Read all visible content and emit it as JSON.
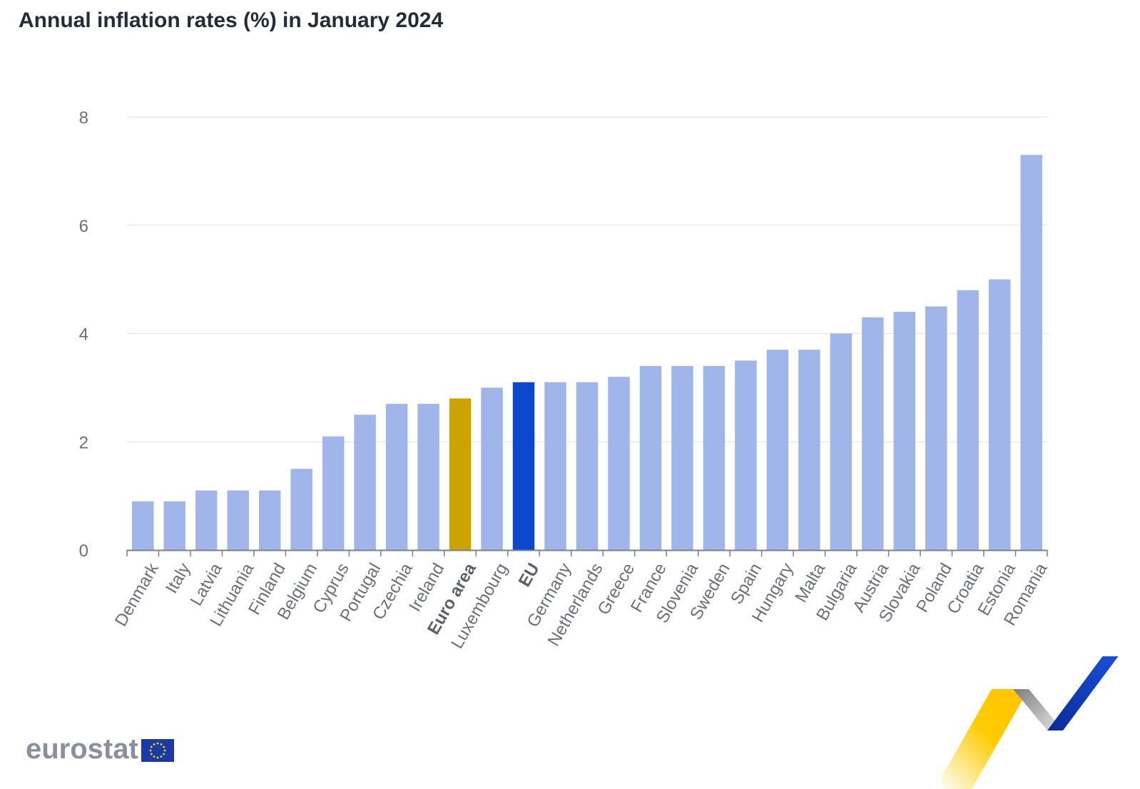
{
  "title": "Annual inflation rates (%) in January 2024",
  "logo": {
    "wordmark": "eurostat",
    "flag_icon": "eu-flag-icon"
  },
  "colors": {
    "default_bar": "#a0b5e9",
    "euro_area_bar": "#cca300",
    "eu_bar": "#0c48cf",
    "grid": "#dfe1e8",
    "axis": "#7a7f8c",
    "tick_label": "#6b6f7a",
    "text": "#262b38"
  },
  "chart_data": {
    "type": "bar",
    "title": "Annual inflation rates (%) in January 2024",
    "xlabel": "",
    "ylabel": "",
    "ylim": [
      0,
      8
    ],
    "yticks": [
      0,
      2,
      4,
      6,
      8
    ],
    "grid": true,
    "legend": "none",
    "categories": [
      "Denmark",
      "Italy",
      "Latvia",
      "Lithuania",
      "Finland",
      "Belgium",
      "Cyprus",
      "Portugal",
      "Czechia",
      "Ireland",
      "Euro area",
      "Luxembourg",
      "EU",
      "Germany",
      "Netherlands",
      "Greece",
      "France",
      "Slovenia",
      "Sweden",
      "Spain",
      "Hungary",
      "Malta",
      "Bulgaria",
      "Austria",
      "Slovakia",
      "Poland",
      "Croatia",
      "Estonia",
      "Romania"
    ],
    "values": [
      0.9,
      0.9,
      1.1,
      1.1,
      1.1,
      1.5,
      2.1,
      2.5,
      2.7,
      2.7,
      2.8,
      3.0,
      3.1,
      3.1,
      3.1,
      3.2,
      3.4,
      3.4,
      3.4,
      3.5,
      3.7,
      3.7,
      4.0,
      4.3,
      4.4,
      4.5,
      4.8,
      5.0,
      7.3
    ],
    "highlight": {
      "Euro area": "euro_area_bar",
      "EU": "eu_bar"
    },
    "bold_categories": [
      "Euro area",
      "EU"
    ]
  }
}
